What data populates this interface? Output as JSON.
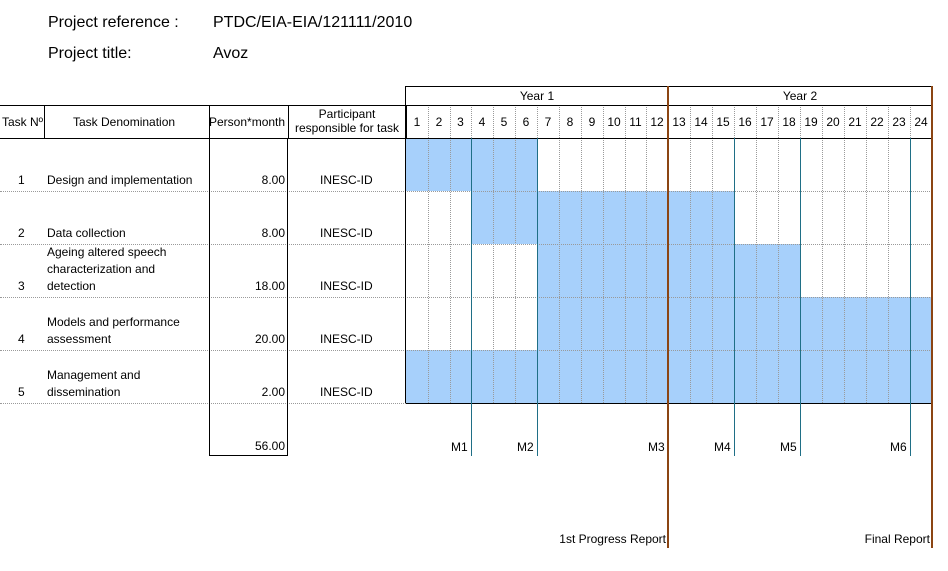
{
  "project": {
    "reference_label": "Project reference :",
    "reference_value": "PTDC/EIA-EIA/121111/2010",
    "title_label": "Project title:",
    "title_value": "Avoz"
  },
  "table": {
    "headers": {
      "task_no": "Task Nº",
      "task_denomination": "Task Denomination",
      "person_month": "Person*month",
      "participant_line1": "Participant",
      "participant_line2": "responsible for task"
    },
    "years": [
      "Year 1",
      "Year 2"
    ],
    "months": [
      "1",
      "2",
      "3",
      "4",
      "5",
      "6",
      "7",
      "8",
      "9",
      "10",
      "11",
      "12",
      "13",
      "14",
      "15",
      "16",
      "17",
      "18",
      "19",
      "20",
      "21",
      "22",
      "23",
      "24"
    ],
    "tasks": [
      {
        "no": "1",
        "name_lines": [
          "Design and implementation"
        ],
        "pm": "8.00",
        "participant": "INESC-ID",
        "bars": [
          [
            1,
            6
          ]
        ]
      },
      {
        "no": "2",
        "name_lines": [
          "Data collection"
        ],
        "pm": "8.00",
        "participant": "INESC-ID",
        "bars": [
          [
            4,
            15
          ]
        ]
      },
      {
        "no": "3",
        "name_lines": [
          "Ageing altered speech",
          "characterization and",
          "detection"
        ],
        "pm": "18.00",
        "participant": "INESC-ID",
        "bars": [
          [
            7,
            18
          ]
        ]
      },
      {
        "no": "4",
        "name_lines": [
          "Models and performance",
          "assessment"
        ],
        "pm": "20.00",
        "participant": "INESC-ID",
        "bars": [
          [
            7,
            24
          ]
        ]
      },
      {
        "no": "5",
        "name_lines": [
          "Management and",
          "dissemination"
        ],
        "pm": "2.00",
        "participant": "INESC-ID",
        "bars": [
          [
            1,
            24
          ]
        ]
      }
    ],
    "total_pm": "56.00"
  },
  "milestones": [
    {
      "label": "M1",
      "month": 3
    },
    {
      "label": "M2",
      "month": 6
    },
    {
      "label": "M3",
      "month": 12
    },
    {
      "label": "M4",
      "month": 15
    },
    {
      "label": "M5",
      "month": 18
    },
    {
      "label": "M6",
      "month": 23
    }
  ],
  "reports": [
    {
      "label": "1st Progress Report",
      "month": 12
    },
    {
      "label": "Final Report",
      "month": 24
    }
  ],
  "colors": {
    "bar_fill": "#a7d0fb",
    "milestone_line": "#1f6f86",
    "report_line": "#8b4513"
  }
}
